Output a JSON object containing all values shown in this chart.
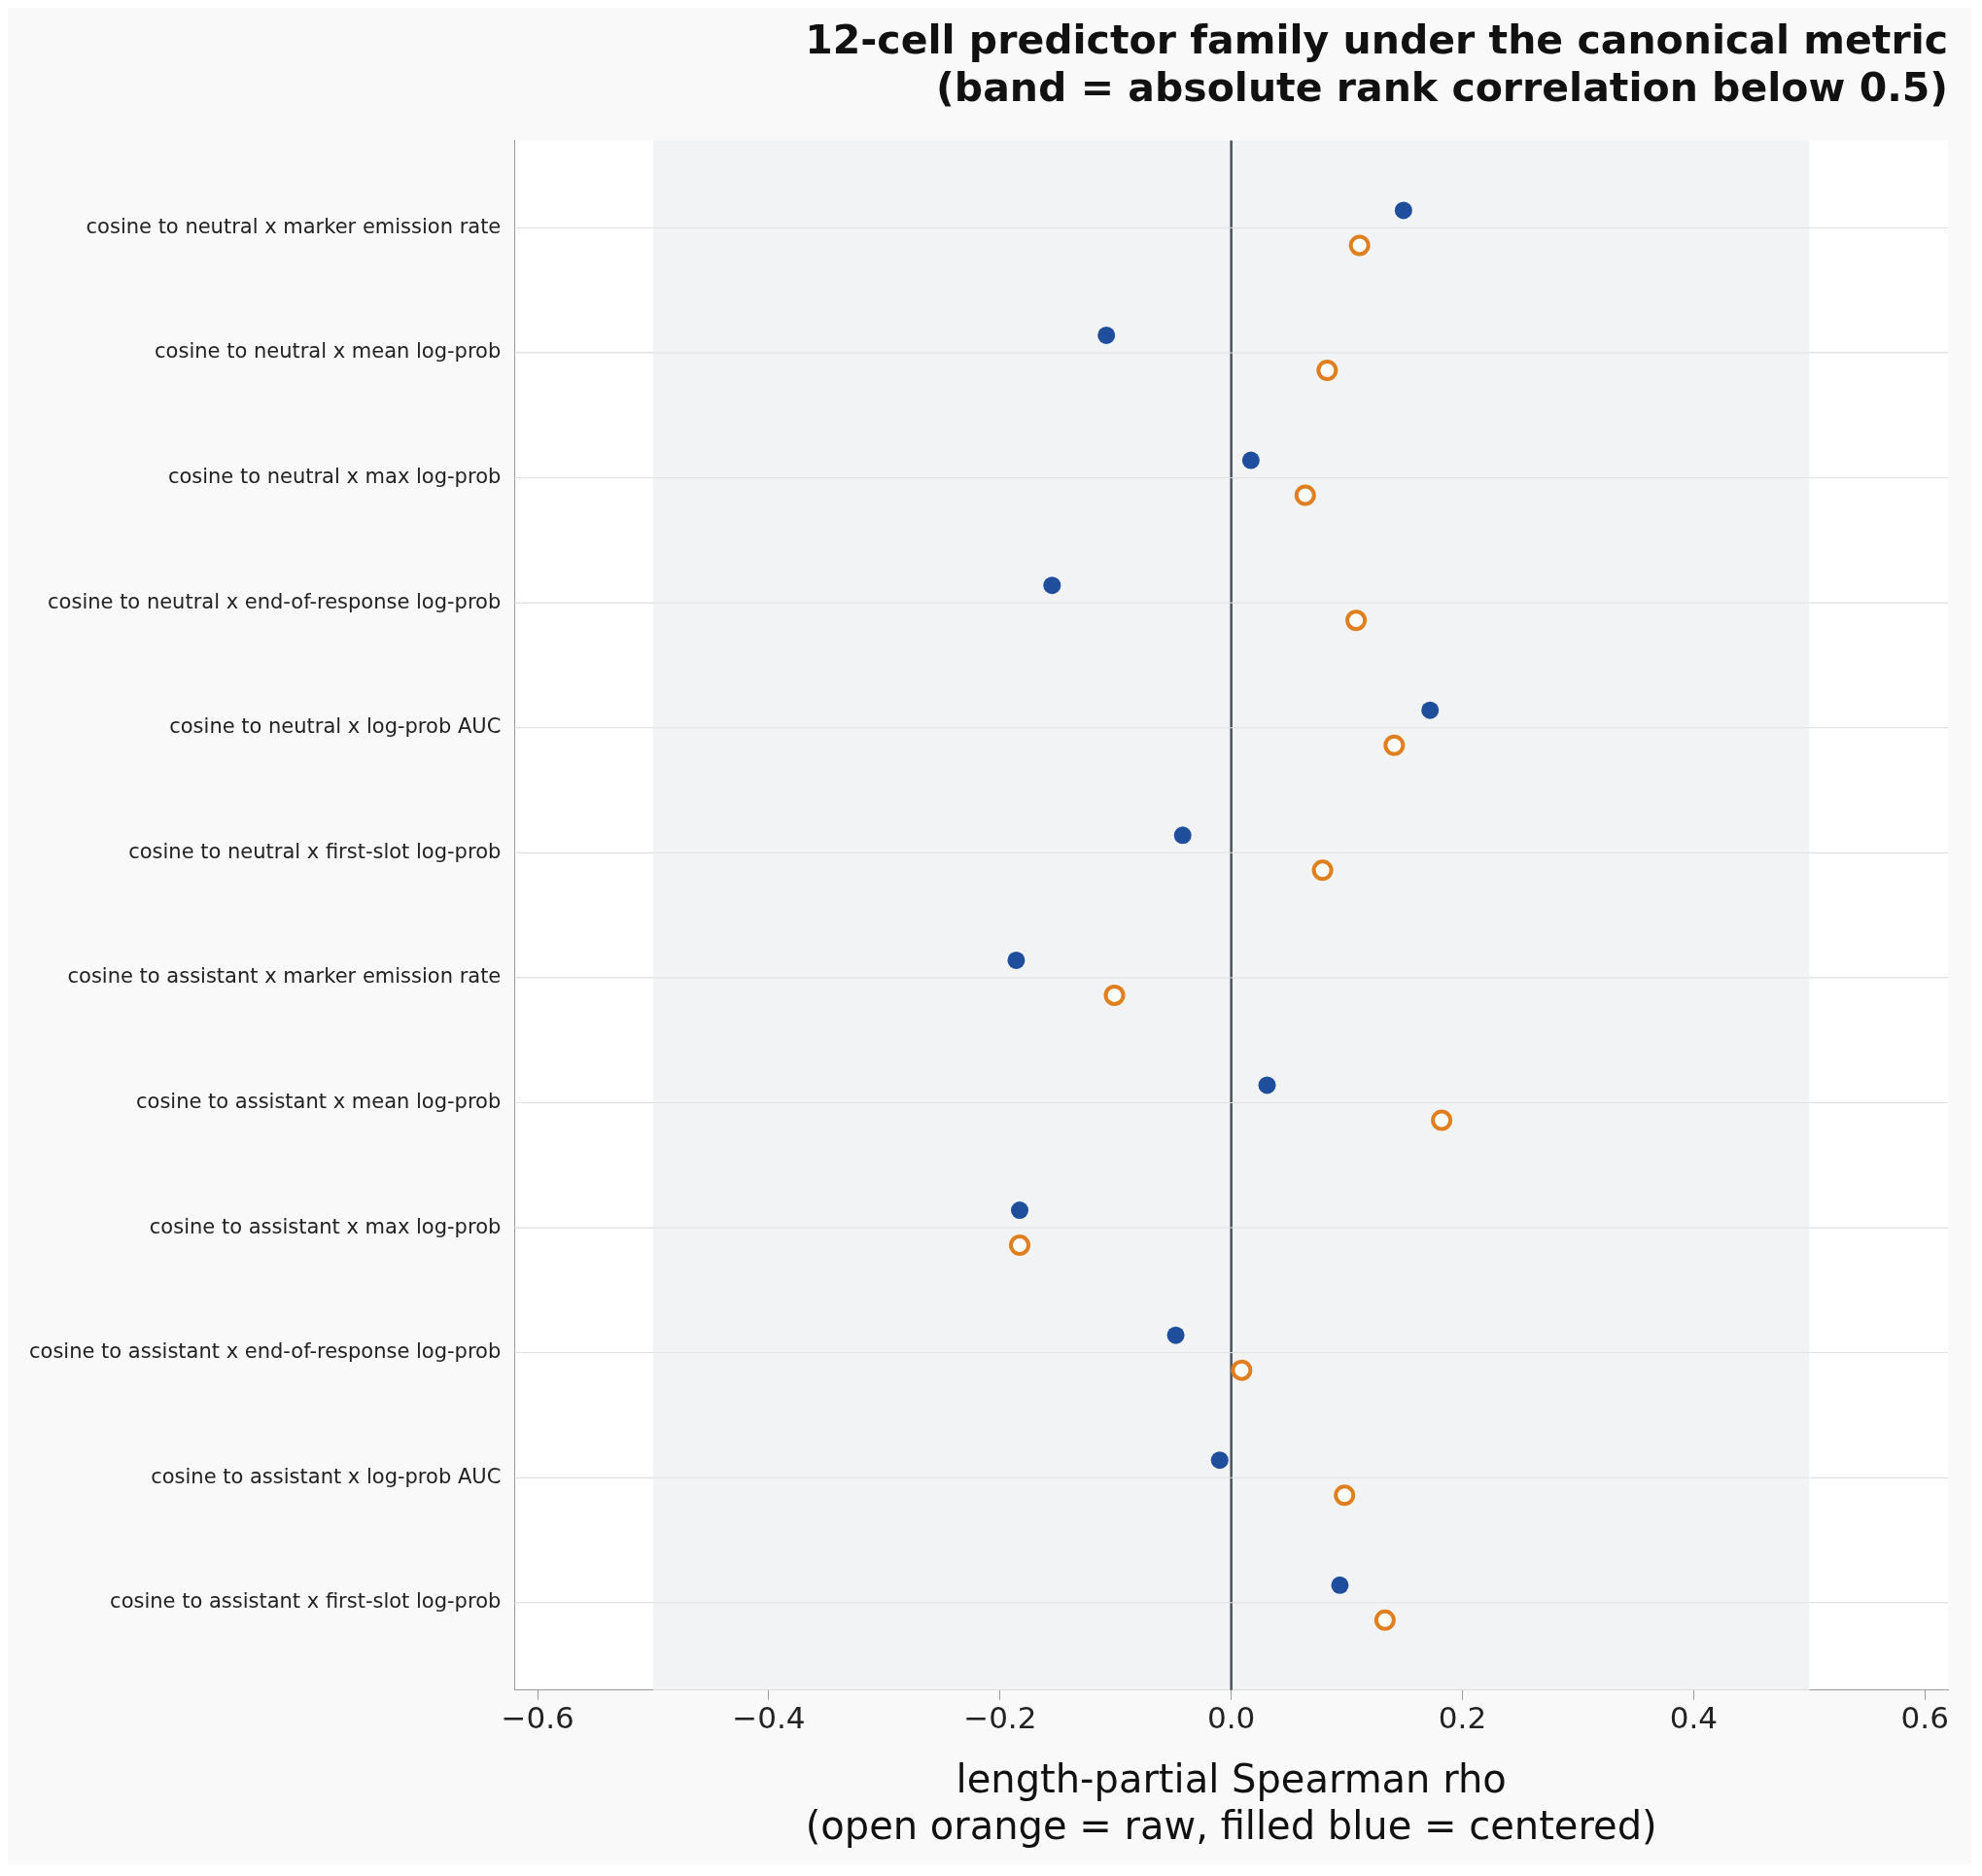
{
  "chart_data": {
    "type": "scatter",
    "orientation": "horizontal",
    "title": "12-cell predictor family under the canonical metric\n(band = absolute rank correlation below 0.5)",
    "xlabel": "length-partial Spearman rho\n(open orange = raw, filled blue = centered)",
    "categories": [
      "cosine to neutral x marker emission rate",
      "cosine to neutral x mean log-prob",
      "cosine to neutral x max log-prob",
      "cosine to neutral x end-of-response log-prob",
      "cosine to neutral x log-prob AUC",
      "cosine to neutral x first-slot log-prob",
      "cosine to assistant x marker emission rate",
      "cosine to assistant x mean log-prob",
      "cosine to assistant x max log-prob",
      "cosine to assistant x end-of-response log-prob",
      "cosine to assistant x log-prob AUC",
      "cosine to assistant x first-slot log-prob"
    ],
    "series": [
      {
        "color": "#1f4e9c",
        "values": [
          0.149,
          -0.108,
          0.017,
          -0.155,
          0.172,
          -0.042,
          -0.186,
          0.031,
          -0.183,
          -0.048,
          -0.01,
          0.094
        ]
      },
      {
        "color": "#e07f1f",
        "values": [
          0.111,
          0.083,
          0.064,
          0.108,
          0.141,
          0.079,
          -0.101,
          0.182,
          -0.183,
          0.009,
          0.098,
          0.133
        ]
      }
    ],
    "xlim": [
      -0.62,
      0.62
    ],
    "xticks": [
      {
        "value": -0.6,
        "label": "−0.6"
      },
      {
        "value": -0.4,
        "label": "−0.4"
      },
      {
        "value": -0.2,
        "label": "−0.2"
      },
      {
        "value": 0,
        "label": "0.0"
      },
      {
        "value": 0.2,
        "label": "0.2"
      },
      {
        "value": 0.4,
        "label": "0.4"
      },
      {
        "value": 0.6,
        "label": "0.6"
      }
    ],
    "bands": [
      {
        "axis": "x",
        "from": -0.5,
        "to": 0.5,
        "color": "#f2f3f5"
      }
    ],
    "ref_lines": [
      {
        "axis": "x",
        "value": 0,
        "color": "#4a5260"
      }
    ],
    "grid": "y",
    "marker": "circle",
    "legend": false
  }
}
